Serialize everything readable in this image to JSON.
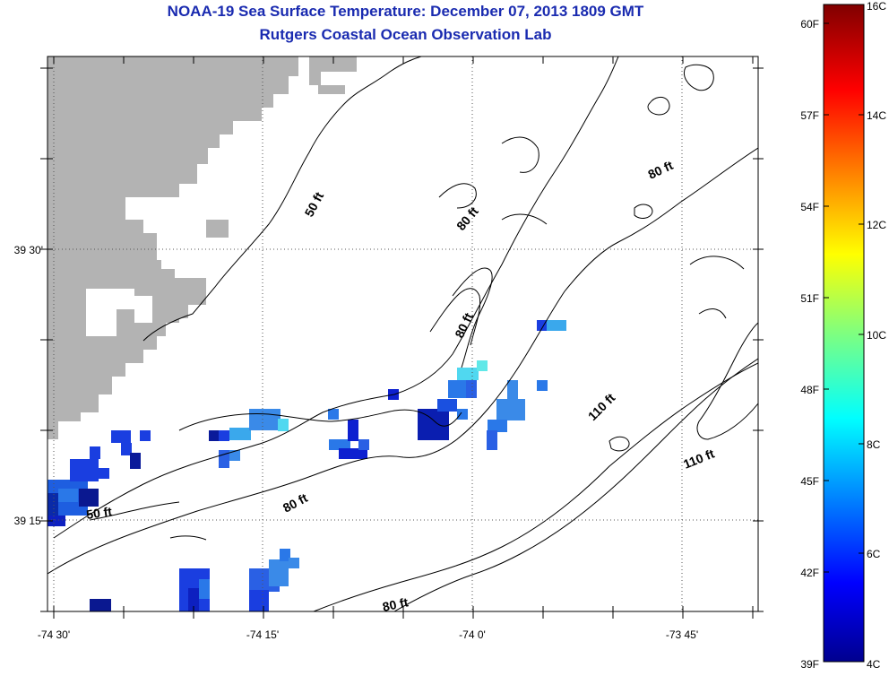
{
  "header": {
    "title": "NOAA-19 Sea Surface Temperature:  December 07, 2013 1809 GMT",
    "subtitle": "Rutgers Coastal Ocean Observation Lab"
  },
  "map": {
    "lon_ticks": [
      "-74 30'",
      "-74 15'",
      "-74 0'",
      "-73 45'"
    ],
    "lat_ticks": [
      "39 30'",
      "39 15'"
    ],
    "depth_labels": [
      "50 ft",
      "80 ft",
      "80 ft",
      "80 ft",
      "80 ft",
      "110 ft",
      "110 ft",
      "50 ft",
      "80 ft"
    ],
    "land_color": "#b3b3b3",
    "contour_color": "#000000"
  },
  "colorbar": {
    "fahrenheit_labels": [
      "60F",
      "57F",
      "54F",
      "51F",
      "48F",
      "45F",
      "42F",
      "39F"
    ],
    "celsius_labels": [
      "16C",
      "14C",
      "12C",
      "10C",
      "8C",
      "6C",
      "4C"
    ],
    "range_c": [
      4,
      16
    ],
    "colormap": "jet"
  }
}
